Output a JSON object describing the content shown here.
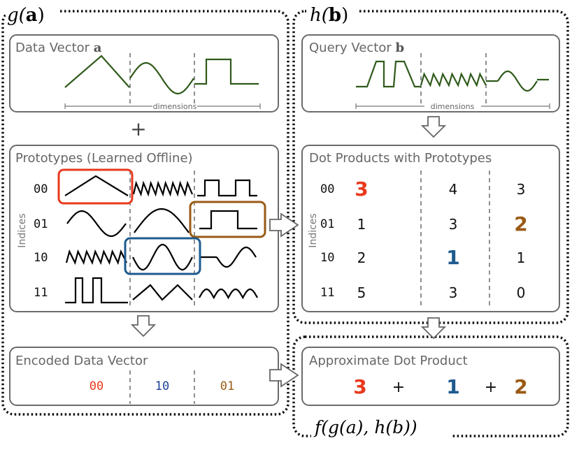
{
  "colors": {
    "red": "#e8391d",
    "blue": "#1d5a8e",
    "brown": "#9a5a14",
    "green": "#2f5a1a"
  },
  "left": {
    "title_fn": "g(",
    "title_arg": "a",
    "title_close": ")",
    "data_vector": {
      "title": "Data Vector ",
      "symbol": "a",
      "axis_label": "dimensions"
    },
    "plus": "+",
    "prototypes": {
      "title": "Prototypes (Learned Offline)",
      "axis_label": "Indices",
      "indices": [
        "00",
        "01",
        "10",
        "11"
      ]
    },
    "encoded": {
      "title": "Encoded Data Vector",
      "codes": [
        "00",
        "10",
        "01"
      ]
    }
  },
  "right": {
    "title_fn": "h(",
    "title_arg": "b",
    "title_close": ")",
    "query_vector": {
      "title": "Query Vector ",
      "symbol": "b",
      "axis_label": "dimensions"
    },
    "dot_products": {
      "title": "Dot Products with Prototypes",
      "axis_label": "Indices",
      "indices": [
        "00",
        "01",
        "10",
        "11"
      ],
      "rows": [
        [
          "3",
          "4",
          "3"
        ],
        [
          "1",
          "3",
          "2"
        ],
        [
          "2",
          "1",
          "1"
        ],
        [
          "5",
          "3",
          "0"
        ]
      ]
    },
    "approx": {
      "title": "Approximate Dot Product",
      "terms": [
        "3",
        "+",
        "1",
        "+",
        "2"
      ]
    },
    "f_label": "f(g(a), h(b))"
  }
}
